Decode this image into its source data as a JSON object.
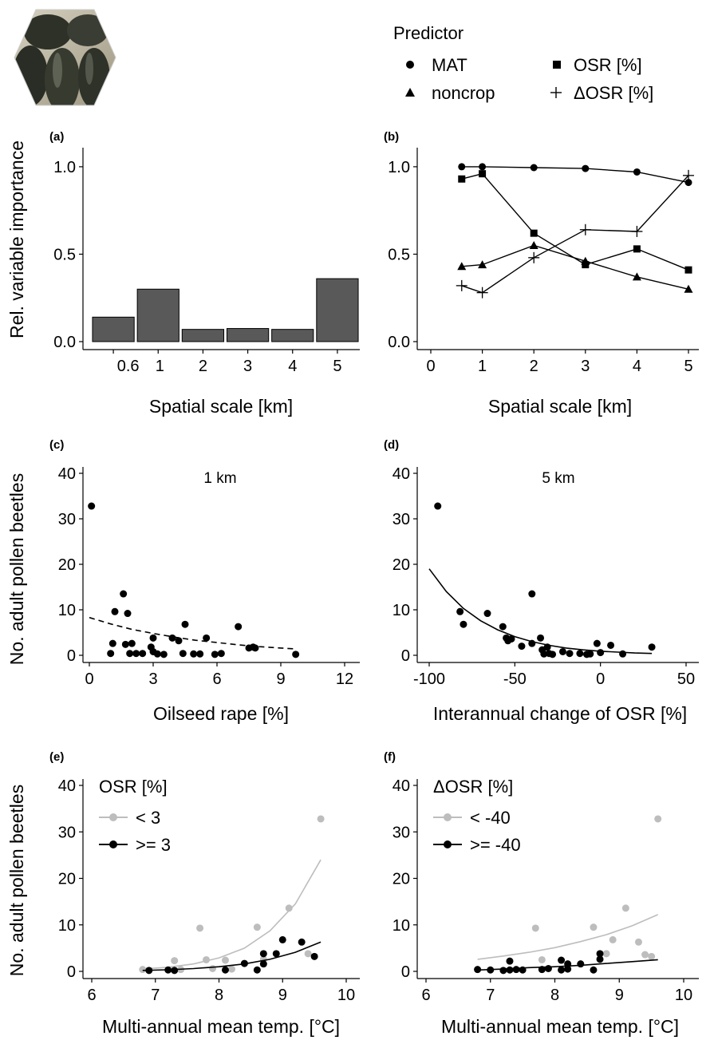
{
  "legend": {
    "title": "Predictor",
    "items": [
      {
        "symbol": "circle",
        "label": "MAT"
      },
      {
        "symbol": "square",
        "label": "OSR [%]"
      },
      {
        "symbol": "triangle",
        "label": "noncrop"
      },
      {
        "symbol": "plus",
        "label": "ΔOSR [%]"
      }
    ]
  },
  "photo": {
    "icon": "pollen-beetles-photo",
    "colors": [
      "#3b3e33",
      "#8a8a6a",
      "#c9c4b0"
    ]
  },
  "colors": {
    "bar_fill": "#595959",
    "gray_series": "#bdbdbd",
    "black_series": "#000000"
  },
  "chart_data": [
    {
      "id": "a",
      "panel_label": "(a)",
      "type": "bar",
      "categories": [
        "0.6",
        "1",
        "2",
        "3",
        "4",
        "5"
      ],
      "values": [
        0.14,
        0.3,
        0.07,
        0.075,
        0.07,
        0.36
      ],
      "xlabel": "Spatial scale [km]",
      "ylabel": "Rel. variable importance",
      "ylim": [
        0,
        1.1
      ],
      "yticks": [
        "0.0",
        "0.5",
        "1.0"
      ],
      "ytick_values": [
        0,
        0.5,
        1.0
      ]
    },
    {
      "id": "b",
      "panel_label": "(b)",
      "type": "line",
      "x": [
        0.6,
        1,
        2,
        3,
        4,
        5
      ],
      "series": [
        {
          "name": "MAT",
          "symbol": "circle",
          "values": [
            1.0,
            1.0,
            0.995,
            0.99,
            0.97,
            0.91
          ]
        },
        {
          "name": "OSR [%]",
          "symbol": "square",
          "values": [
            0.93,
            0.96,
            0.62,
            0.44,
            0.53,
            0.41
          ]
        },
        {
          "name": "noncrop",
          "symbol": "triangle",
          "values": [
            0.43,
            0.44,
            0.55,
            0.46,
            0.37,
            0.3
          ]
        },
        {
          "name": "ΔOSR [%]",
          "symbol": "plus",
          "values": [
            0.32,
            0.28,
            0.48,
            0.64,
            0.63,
            0.95
          ]
        }
      ],
      "xlabel": "Spatial scale [km]",
      "ylabel": "",
      "xlim": [
        -0.3,
        5.25
      ],
      "xticks": [
        "0",
        "1",
        "2",
        "3",
        "4",
        "5"
      ],
      "xtick_values": [
        0,
        1,
        2,
        3,
        4,
        5
      ],
      "ylim": [
        0,
        1.1
      ],
      "yticks": [
        "0.0",
        "0.5",
        "1.0"
      ],
      "ytick_values": [
        0,
        0.5,
        1.0
      ]
    },
    {
      "id": "c",
      "panel_label": "(c)",
      "type": "scatter",
      "annotation": "1 km",
      "points": [
        [
          0.1,
          32.8
        ],
        [
          1.0,
          0.4
        ],
        [
          1.1,
          2.6
        ],
        [
          1.2,
          9.6
        ],
        [
          1.6,
          13.5
        ],
        [
          1.7,
          2.4
        ],
        [
          1.8,
          9.2
        ],
        [
          1.9,
          0.4
        ],
        [
          2.0,
          2.6
        ],
        [
          2.2,
          0.4
        ],
        [
          2.5,
          0.4
        ],
        [
          2.9,
          1.8
        ],
        [
          3.0,
          3.8
        ],
        [
          3.0,
          0.8
        ],
        [
          3.2,
          0.3
        ],
        [
          3.5,
          0.2
        ],
        [
          3.9,
          3.8
        ],
        [
          4.2,
          3.2
        ],
        [
          4.4,
          0.4
        ],
        [
          4.5,
          6.8
        ],
        [
          4.9,
          0.3
        ],
        [
          5.2,
          0.3
        ],
        [
          5.5,
          3.8
        ],
        [
          5.9,
          0.2
        ],
        [
          6.2,
          0.4
        ],
        [
          7.0,
          6.3
        ],
        [
          7.5,
          1.6
        ],
        [
          7.7,
          1.8
        ],
        [
          7.8,
          1.6
        ],
        [
          9.7,
          0.2
        ]
      ],
      "fit": {
        "style": "dashed",
        "x": [
          0,
          1,
          2,
          3,
          4,
          5,
          6,
          7,
          8,
          9,
          9.7
        ],
        "y": [
          8.3,
          6.9,
          5.7,
          4.8,
          4.0,
          3.3,
          2.8,
          2.3,
          1.9,
          1.6,
          1.4
        ]
      },
      "xlabel": "Oilseed rape [%]",
      "ylabel": "No. adult pollen beetles",
      "xlim": [
        -0.6,
        12.3
      ],
      "xticks": [
        "0",
        "3",
        "6",
        "9",
        "12"
      ],
      "xtick_values": [
        0,
        3,
        6,
        9,
        12
      ],
      "ylim": [
        -2,
        42
      ],
      "yticks": [
        "0",
        "10",
        "20",
        "30",
        "40"
      ],
      "ytick_values": [
        0,
        10,
        20,
        30,
        40
      ]
    },
    {
      "id": "d",
      "panel_label": "(d)",
      "type": "scatter",
      "annotation": "5 km",
      "points": [
        [
          -95,
          32.8
        ],
        [
          -82,
          9.6
        ],
        [
          -80,
          6.8
        ],
        [
          -66,
          9.2
        ],
        [
          -57,
          6.3
        ],
        [
          -55,
          3.8
        ],
        [
          -54,
          3.2
        ],
        [
          -52,
          3.6
        ],
        [
          -46,
          2.0
        ],
        [
          -40,
          13.5
        ],
        [
          -40,
          2.6
        ],
        [
          -35,
          3.8
        ],
        [
          -34,
          1.2
        ],
        [
          -33,
          0.3
        ],
        [
          -31,
          1.8
        ],
        [
          -30,
          0.4
        ],
        [
          -28,
          0.2
        ],
        [
          -22,
          0.8
        ],
        [
          -18,
          0.4
        ],
        [
          -12,
          0.4
        ],
        [
          -8,
          0.2
        ],
        [
          -6,
          0.3
        ],
        [
          -2,
          2.6
        ],
        [
          0,
          0.6
        ],
        [
          6,
          2.2
        ],
        [
          13,
          0.3
        ],
        [
          30,
          1.8
        ]
      ],
      "fit": {
        "style": "solid",
        "x": [
          -100,
          -90,
          -80,
          -70,
          -60,
          -50,
          -40,
          -30,
          -20,
          -10,
          0,
          10,
          20,
          30
        ],
        "y": [
          19.0,
          14.0,
          10.3,
          7.6,
          5.6,
          4.1,
          3.0,
          2.2,
          1.6,
          1.2,
          0.9,
          0.7,
          0.5,
          0.4
        ]
      },
      "xlabel": "Interannual change of OSR [%]",
      "ylabel": "",
      "xlim": [
        -104,
        54
      ],
      "xticks": [
        "-100",
        "-50",
        "0",
        "50"
      ],
      "xtick_values": [
        -100,
        -50,
        0,
        50
      ],
      "ylim": [
        -2,
        42
      ],
      "yticks": [
        "0",
        "10",
        "20",
        "30",
        "40"
      ],
      "ytick_values": [
        0,
        10,
        20,
        30,
        40
      ]
    },
    {
      "id": "e",
      "panel_label": "(e)",
      "type": "scatter",
      "legend_title": "OSR [%]",
      "series": [
        {
          "name": "< 3",
          "color": "#bdbdbd",
          "points": [
            [
              6.8,
              0.4
            ],
            [
              7.3,
              2.3
            ],
            [
              7.4,
              0.4
            ],
            [
              7.7,
              9.3
            ],
            [
              7.8,
              2.5
            ],
            [
              7.9,
              0.6
            ],
            [
              8.1,
              2.4
            ],
            [
              8.2,
              0.5
            ],
            [
              8.6,
              9.5
            ],
            [
              8.7,
              2.6
            ],
            [
              9.1,
              13.6
            ],
            [
              9.4,
              3.8
            ],
            [
              9.6,
              32.8
            ]
          ],
          "fit": {
            "x": [
              6.8,
              7.2,
              7.6,
              8.0,
              8.4,
              8.8,
              9.2,
              9.6
            ],
            "y": [
              0.5,
              0.9,
              1.6,
              2.9,
              5.0,
              8.7,
              14.5,
              24.0
            ]
          }
        },
        {
          "name": ">= 3",
          "color": "#000000",
          "points": [
            [
              6.9,
              0.2
            ],
            [
              7.2,
              0.3
            ],
            [
              7.3,
              0.2
            ],
            [
              8.1,
              0.3
            ],
            [
              8.4,
              1.7
            ],
            [
              8.6,
              0.3
            ],
            [
              8.7,
              1.6
            ],
            [
              8.7,
              3.8
            ],
            [
              8.9,
              3.8
            ],
            [
              9.0,
              6.8
            ],
            [
              9.3,
              6.3
            ],
            [
              9.5,
              3.2
            ]
          ],
          "fit": {
            "x": [
              6.8,
              7.2,
              7.6,
              8.0,
              8.4,
              8.8,
              9.2,
              9.6
            ],
            "y": [
              0.2,
              0.35,
              0.6,
              1.0,
              1.6,
              2.6,
              4.1,
              6.3
            ]
          }
        }
      ],
      "xlabel": "Multi-annual mean temp. [°C]",
      "ylabel": "No. adult pollen beetles",
      "xlim": [
        5.95,
        10.05
      ],
      "xticks": [
        "6",
        "7",
        "8",
        "9",
        "10"
      ],
      "xtick_values": [
        6,
        7,
        8,
        9,
        10
      ],
      "ylim": [
        -2,
        42
      ],
      "yticks": [
        "0",
        "10",
        "20",
        "30",
        "40"
      ],
      "ytick_values": [
        0,
        10,
        20,
        30,
        40
      ]
    },
    {
      "id": "f",
      "panel_label": "(f)",
      "type": "scatter",
      "legend_title": "ΔOSR [%]",
      "series": [
        {
          "name": "< -40",
          "color": "#bdbdbd",
          "points": [
            [
              7.7,
              9.3
            ],
            [
              7.8,
              2.5
            ],
            [
              8.6,
              9.5
            ],
            [
              8.8,
              3.8
            ],
            [
              8.9,
              6.8
            ],
            [
              9.1,
              13.6
            ],
            [
              9.3,
              6.3
            ],
            [
              9.4,
              3.6
            ],
            [
              9.5,
              3.2
            ],
            [
              9.6,
              32.8
            ]
          ],
          "fit": {
            "x": [
              6.8,
              7.2,
              7.6,
              8.0,
              8.4,
              8.8,
              9.2,
              9.6
            ],
            "y": [
              2.6,
              3.3,
              4.1,
              5.1,
              6.4,
              7.9,
              9.8,
              12.2
            ]
          }
        },
        {
          "name": ">= -40",
          "color": "#000000",
          "points": [
            [
              6.8,
              0.4
            ],
            [
              7.0,
              0.3
            ],
            [
              7.2,
              0.2
            ],
            [
              7.3,
              0.3
            ],
            [
              7.3,
              2.2
            ],
            [
              7.4,
              0.4
            ],
            [
              7.5,
              0.3
            ],
            [
              7.8,
              0.4
            ],
            [
              7.9,
              0.6
            ],
            [
              8.1,
              2.4
            ],
            [
              8.1,
              0.3
            ],
            [
              8.2,
              0.5
            ],
            [
              8.2,
              1.6
            ],
            [
              8.4,
              1.6
            ],
            [
              8.6,
              0.3
            ],
            [
              8.7,
              2.6
            ],
            [
              8.7,
              3.8
            ]
          ],
          "fit": {
            "x": [
              6.8,
              7.2,
              7.6,
              8.0,
              8.4,
              8.8,
              9.2,
              9.6
            ],
            "y": [
              0.3,
              0.5,
              0.8,
              1.0,
              1.3,
              1.7,
              2.1,
              2.5
            ]
          }
        }
      ],
      "xlabel": "Multi-annual mean temp. [°C]",
      "ylabel": "",
      "xlim": [
        5.95,
        10.05
      ],
      "xticks": [
        "6",
        "7",
        "8",
        "9",
        "10"
      ],
      "xtick_values": [
        6,
        7,
        8,
        9,
        10
      ],
      "ylim": [
        -2,
        42
      ],
      "yticks": [
        "0",
        "10",
        "20",
        "30",
        "40"
      ],
      "ytick_values": [
        0,
        10,
        20,
        30,
        40
      ]
    }
  ]
}
